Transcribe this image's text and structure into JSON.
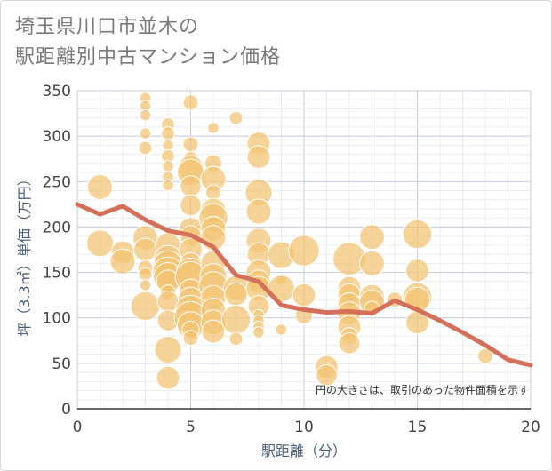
{
  "chart_data": {
    "type": "scatter",
    "title_lines": [
      "埼玉県川口市並木の",
      "駅距離別中古マンション価格"
    ],
    "xlabel": "駅距離（分）",
    "ylabel": "坪（3.3㎡）単価（万円）",
    "annotation": "円の大きさは、取引のあった物件面積を示す",
    "xlim": [
      0,
      20
    ],
    "ylim": [
      0,
      350
    ],
    "xticks": [
      0,
      5,
      10,
      15,
      20
    ],
    "yticks": [
      0,
      50,
      100,
      150,
      200,
      250,
      300,
      350
    ],
    "grid": true,
    "colors": {
      "bubble": "#f3c472",
      "line": "#d4705a"
    },
    "bubbles": [
      [
        1,
        244,
        1.0
      ],
      [
        1,
        182,
        1.1
      ],
      [
        2,
        172,
        0.9
      ],
      [
        2,
        162,
        1.0
      ],
      [
        3,
        342,
        0.3
      ],
      [
        3,
        333,
        0.3
      ],
      [
        3,
        323,
        0.3
      ],
      [
        3,
        303,
        0.3
      ],
      [
        3,
        287,
        0.4
      ],
      [
        3,
        188,
        1.0
      ],
      [
        3,
        175,
        0.9
      ],
      [
        3,
        155,
        0.5
      ],
      [
        3,
        148,
        0.4
      ],
      [
        3,
        136,
        0.3
      ],
      [
        3,
        113,
        1.2
      ],
      [
        4,
        313,
        0.4
      ],
      [
        4,
        303,
        0.4
      ],
      [
        4,
        290,
        0.3
      ],
      [
        4,
        278,
        0.4
      ],
      [
        4,
        267,
        0.3
      ],
      [
        4,
        255,
        0.3
      ],
      [
        4,
        246,
        0.3
      ],
      [
        4,
        180,
        1.0
      ],
      [
        4,
        165,
        1.1
      ],
      [
        4,
        158,
        1.2
      ],
      [
        4,
        150,
        1.3
      ],
      [
        4,
        145,
        1.2
      ],
      [
        4,
        140,
        0.9
      ],
      [
        4,
        128,
        0.5
      ],
      [
        4,
        118,
        0.8
      ],
      [
        4,
        97,
        0.8
      ],
      [
        4,
        65,
        1.1
      ],
      [
        4,
        34,
        0.9
      ],
      [
        5,
        337,
        0.5
      ],
      [
        5,
        291,
        0.5
      ],
      [
        5,
        276,
        0.4
      ],
      [
        5,
        265,
        1.0
      ],
      [
        5,
        260,
        1.1
      ],
      [
        5,
        245,
        0.8
      ],
      [
        5,
        224,
        0.8
      ],
      [
        5,
        198,
        0.9
      ],
      [
        5,
        190,
        0.8
      ],
      [
        5,
        175,
        0.9
      ],
      [
        5,
        160,
        0.8
      ],
      [
        5,
        150,
        1.2
      ],
      [
        5,
        145,
        1.3
      ],
      [
        5,
        130,
        0.9
      ],
      [
        5,
        120,
        1.0
      ],
      [
        5,
        108,
        1.3
      ],
      [
        5,
        100,
        1.4
      ],
      [
        5,
        92,
        1.1
      ],
      [
        5,
        87,
        0.6
      ],
      [
        5,
        78,
        0.5
      ],
      [
        6,
        309,
        0.3
      ],
      [
        6,
        270,
        0.6
      ],
      [
        6,
        253,
        1.0
      ],
      [
        6,
        238,
        0.5
      ],
      [
        6,
        218,
        1.0
      ],
      [
        6,
        210,
        1.2
      ],
      [
        6,
        198,
        1.0
      ],
      [
        6,
        188,
        1.0
      ],
      [
        6,
        160,
        1.0
      ],
      [
        6,
        145,
        1.1
      ],
      [
        6,
        135,
        1.2
      ],
      [
        6,
        122,
        1.0
      ],
      [
        6,
        108,
        1.0
      ],
      [
        6,
        95,
        1.0
      ],
      [
        6,
        85,
        0.9
      ],
      [
        7,
        320,
        0.4
      ],
      [
        7,
        133,
        1.0
      ],
      [
        7,
        126,
        0.9
      ],
      [
        7,
        98,
        1.2
      ],
      [
        7,
        77,
        0.4
      ],
      [
        8,
        292,
        0.9
      ],
      [
        8,
        277,
        0.9
      ],
      [
        8,
        238,
        1.1
      ],
      [
        8,
        217,
        1.0
      ],
      [
        8,
        185,
        1.0
      ],
      [
        8,
        170,
        0.9
      ],
      [
        8,
        150,
        1.0
      ],
      [
        8,
        140,
        0.9
      ],
      [
        8,
        132,
        1.0
      ],
      [
        8,
        113,
        0.8
      ],
      [
        8,
        103,
        0.3
      ],
      [
        8,
        97,
        0.3
      ],
      [
        8,
        90,
        0.3
      ],
      [
        8,
        84,
        0.3
      ],
      [
        9,
        169,
        1.1
      ],
      [
        9,
        142,
        0.3
      ],
      [
        9,
        132,
        1.1
      ],
      [
        9,
        87,
        0.3
      ],
      [
        10,
        174,
        1.3
      ],
      [
        10,
        125,
        0.9
      ],
      [
        10,
        103,
        0.6
      ],
      [
        11,
        46,
        0.9
      ],
      [
        11,
        37,
        0.8
      ],
      [
        12,
        165,
        1.4
      ],
      [
        12,
        133,
        0.9
      ],
      [
        12,
        125,
        0.9
      ],
      [
        12,
        115,
        0.9
      ],
      [
        12,
        105,
        0.9
      ],
      [
        12,
        90,
        0.9
      ],
      [
        12,
        80,
        0.6
      ],
      [
        12,
        72,
        0.8
      ],
      [
        13,
        189,
        1.0
      ],
      [
        13,
        160,
        1.0
      ],
      [
        13,
        123,
        1.0
      ],
      [
        13,
        117,
        1.0
      ],
      [
        13,
        110,
        0.5
      ],
      [
        14,
        120,
        0.5
      ],
      [
        15,
        192,
        1.2
      ],
      [
        15,
        152,
        0.9
      ],
      [
        15,
        123,
        1.2
      ],
      [
        15,
        120,
        1.0
      ],
      [
        15,
        95,
        0.9
      ],
      [
        18,
        58,
        0.5
      ]
    ],
    "series": [
      {
        "x": [
          0,
          1,
          2,
          3,
          4,
          5,
          6,
          7,
          8,
          9,
          10,
          11,
          12,
          13,
          14,
          15,
          16,
          17,
          18,
          19,
          20
        ],
        "y": [
          225,
          214,
          223,
          208,
          196,
          191,
          178,
          147,
          140,
          114,
          109,
          106,
          107,
          105,
          119,
          109,
          97,
          84,
          70,
          54,
          48
        ]
      }
    ]
  }
}
